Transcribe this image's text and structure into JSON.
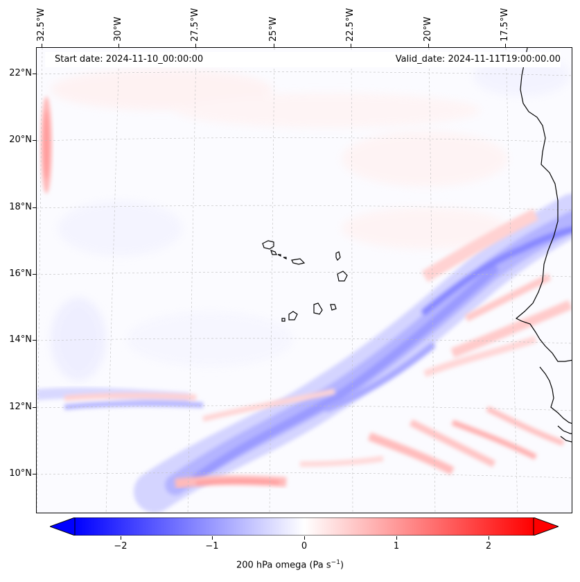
{
  "map": {
    "lon_ticks": [
      "32.5°W",
      "30°W",
      "27.5°W",
      "25°W",
      "22.5°W",
      "20°W",
      "17.5°W"
    ],
    "lat_ticks": [
      "22°N",
      "20°N",
      "18°N",
      "16°N",
      "14°N",
      "12°N",
      "10°N"
    ],
    "start_date": "Start date: 2024-11-10_00:00:00",
    "valid_date": "Valid_date: 2024-11-11T19:00:00.00"
  },
  "colorbar": {
    "ticks": [
      "−2",
      "−1",
      "0",
      "1",
      "2"
    ],
    "label": "200 hPa omega (Pa s",
    "label_sup": "−1",
    "label_end": ")",
    "min_color": "#0000ff",
    "mid_color": "#ffffff",
    "max_color": "#ff0000"
  }
}
